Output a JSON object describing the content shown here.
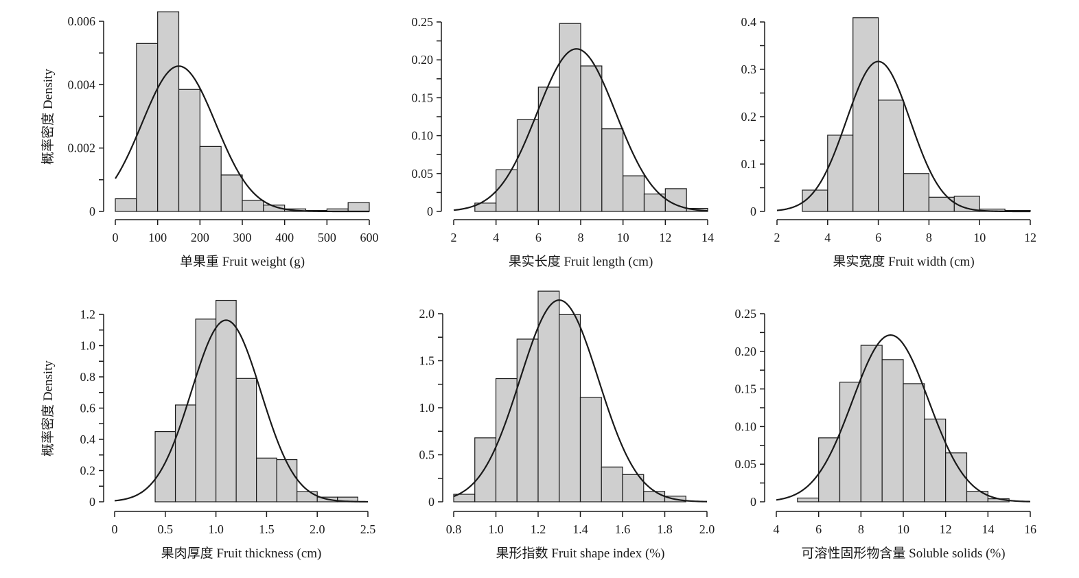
{
  "chart_data": [
    {
      "type": "bar",
      "title": "",
      "xlabel": "单果重 Fruit weight (g)",
      "ylabel": "概率密度 Density",
      "xlim": [
        0,
        600
      ],
      "ylim": [
        0,
        0.006
      ],
      "xticks": [
        0,
        100,
        200,
        300,
        400,
        500,
        600
      ],
      "xtick_labels": [
        "0",
        "100",
        "200",
        "300",
        "400",
        "500",
        "600"
      ],
      "yticks": [
        0,
        0.002,
        0.004,
        0.006
      ],
      "ytick_labels": [
        "0",
        "0.002",
        "0.004",
        "0.006"
      ],
      "bin_edges": [
        0,
        50,
        100,
        150,
        200,
        250,
        300,
        350,
        400,
        450,
        500,
        550,
        600
      ],
      "values": [
        0.0004,
        0.0053,
        0.0063,
        0.00385,
        0.00205,
        0.00115,
        0.00035,
        0.0002,
        8e-05,
        3e-05,
        8e-05,
        0.00028
      ],
      "curve": {
        "type": "normal",
        "mean": 150,
        "sd": 87
      }
    },
    {
      "type": "bar",
      "title": "",
      "xlabel": "果实长度 Fruit length (cm)",
      "ylabel": "",
      "xlim": [
        2,
        14
      ],
      "ylim": [
        0,
        0.25
      ],
      "xticks": [
        2,
        4,
        6,
        8,
        10,
        12,
        14
      ],
      "xtick_labels": [
        "2",
        "4",
        "6",
        "8",
        "10",
        "12",
        "14"
      ],
      "yticks": [
        0,
        0.05,
        0.1,
        0.15,
        0.2,
        0.25
      ],
      "ytick_labels": [
        "0",
        "0.05",
        "0.10",
        "0.15",
        "0.20",
        "0.25"
      ],
      "bin_edges": [
        3,
        4,
        5,
        6,
        7,
        8,
        9,
        10,
        11,
        12,
        13,
        14
      ],
      "values": [
        0.011,
        0.055,
        0.121,
        0.164,
        0.248,
        0.192,
        0.109,
        0.047,
        0.023,
        0.03,
        0.004
      ],
      "curve": {
        "type": "normal",
        "mean": 7.8,
        "sd": 1.86
      }
    },
    {
      "type": "bar",
      "title": "",
      "xlabel": "果实宽度 Fruit width (cm)",
      "ylabel": "",
      "xlim": [
        2,
        12
      ],
      "ylim": [
        0,
        0.4
      ],
      "xticks": [
        2,
        4,
        6,
        8,
        10,
        12
      ],
      "xtick_labels": [
        "2",
        "4",
        "6",
        "8",
        "10",
        "12"
      ],
      "yticks": [
        0,
        0.1,
        0.2,
        0.3,
        0.4
      ],
      "ytick_labels": [
        "0",
        "0.1",
        "0.2",
        "0.3",
        "0.4"
      ],
      "bin_edges": [
        3,
        4,
        5,
        6,
        7,
        8,
        9,
        10,
        11,
        12
      ],
      "values": [
        0.045,
        0.161,
        0.409,
        0.235,
        0.08,
        0.03,
        0.032,
        0.005,
        0.002
      ],
      "curve": {
        "type": "normal",
        "mean": 6.0,
        "sd": 1.26
      }
    },
    {
      "type": "bar",
      "title": "",
      "xlabel": "果肉厚度 Fruit thickness (cm)",
      "ylabel": "概率密度 Density",
      "xlim": [
        0,
        2.5
      ],
      "ylim": [
        0,
        1.2
      ],
      "xticks": [
        0,
        0.5,
        1.0,
        1.5,
        2.0,
        2.5
      ],
      "xtick_labels": [
        "0",
        "0.5",
        "1.0",
        "1.5",
        "2.0",
        "2.5"
      ],
      "yticks": [
        0,
        0.2,
        0.4,
        0.6,
        0.8,
        1.0,
        1.2
      ],
      "ytick_labels": [
        "0",
        "0.2",
        "0.4",
        "0.6",
        "0.8",
        "1.0",
        "1.2"
      ],
      "bin_edges": [
        0.4,
        0.6,
        0.8,
        1.0,
        1.2,
        1.4,
        1.6,
        1.8,
        2.0,
        2.2,
        2.4
      ],
      "values": [
        0.45,
        0.62,
        1.17,
        1.29,
        0.79,
        0.28,
        0.27,
        0.065,
        0.03,
        0.03
      ],
      "curve": {
        "type": "normal",
        "mean": 1.1,
        "sd": 0.343
      }
    },
    {
      "type": "bar",
      "title": "",
      "xlabel": "果形指数 Fruit shape index (%)",
      "ylabel": "",
      "xlim": [
        0.8,
        2.0
      ],
      "ylim": [
        0,
        2.0
      ],
      "xticks": [
        0.8,
        1.0,
        1.2,
        1.4,
        1.6,
        1.8,
        2.0
      ],
      "xtick_labels": [
        "0.8",
        "1.0",
        "1.2",
        "1.4",
        "1.6",
        "1.8",
        "2.0"
      ],
      "yticks": [
        0,
        0.5,
        1.0,
        1.5,
        2.0
      ],
      "ytick_labels": [
        "0",
        "0.5",
        "1.0",
        "1.5",
        "2.0"
      ],
      "bin_edges": [
        0.8,
        0.9,
        1.0,
        1.1,
        1.2,
        1.3,
        1.4,
        1.5,
        1.6,
        1.7,
        1.8,
        1.9
      ],
      "values": [
        0.08,
        0.68,
        1.31,
        1.73,
        2.24,
        1.99,
        1.11,
        0.37,
        0.29,
        0.11,
        0.06
      ],
      "curve": {
        "type": "normal",
        "mean": 1.3,
        "sd": 0.186
      }
    },
    {
      "type": "bar",
      "title": "",
      "xlabel": "可溶性固形物含量 Soluble solids (%)",
      "ylabel": "",
      "xlim": [
        4,
        16
      ],
      "ylim": [
        0,
        0.25
      ],
      "xticks": [
        4,
        6,
        8,
        10,
        12,
        14,
        16
      ],
      "xtick_labels": [
        "4",
        "6",
        "8",
        "10",
        "12",
        "14",
        "16"
      ],
      "yticks": [
        0,
        0.05,
        0.1,
        0.15,
        0.2,
        0.25
      ],
      "ytick_labels": [
        "0",
        "0.05",
        "0.10",
        "0.15",
        "0.20",
        "0.25"
      ],
      "bin_edges": [
        5,
        6,
        7,
        8,
        9,
        10,
        11,
        12,
        13,
        14,
        15
      ],
      "values": [
        0.005,
        0.085,
        0.159,
        0.208,
        0.189,
        0.157,
        0.11,
        0.065,
        0.014,
        0.004
      ],
      "curve": {
        "type": "normal",
        "mean": 9.4,
        "sd": 1.8
      }
    }
  ]
}
